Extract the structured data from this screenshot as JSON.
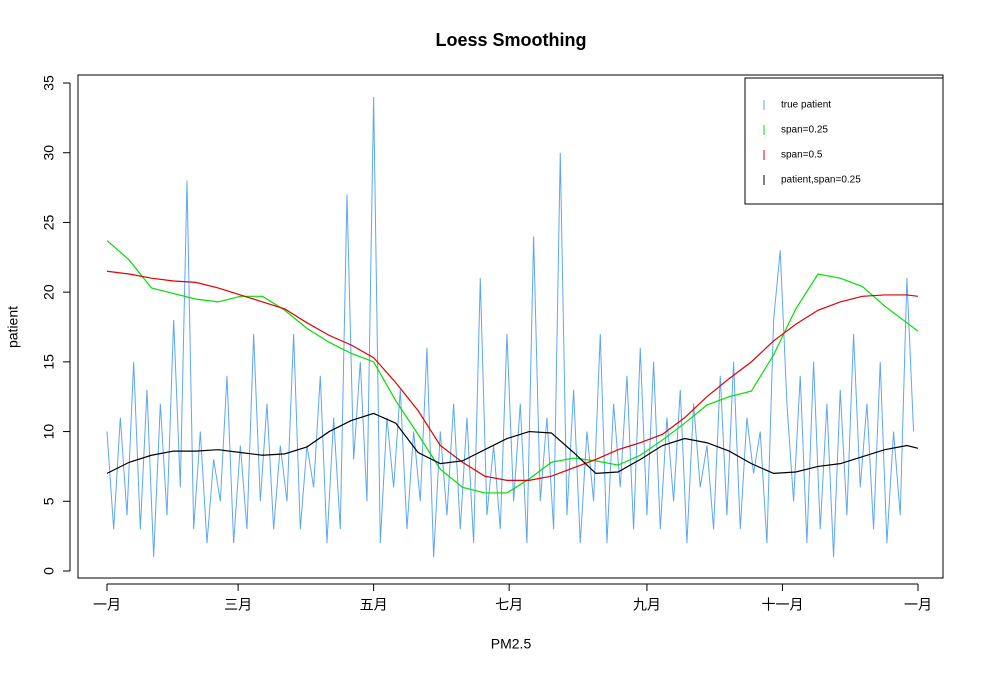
{
  "chart_data": {
    "type": "line",
    "title": "Loess Smoothing",
    "x_label": "PM2.5",
    "y_label": "patient",
    "xlim": [
      0,
      365
    ],
    "ylim": [
      0,
      35
    ],
    "xticks": [
      {
        "value": 0,
        "label": "一月"
      },
      {
        "value": 59,
        "label": "三月"
      },
      {
        "value": 120,
        "label": "五月"
      },
      {
        "value": 181,
        "label": "七月"
      },
      {
        "value": 243,
        "label": "九月"
      },
      {
        "value": 304,
        "label": "十一月"
      },
      {
        "value": 365,
        "label": "一月"
      }
    ],
    "yticks": [
      0,
      5,
      10,
      15,
      20,
      25,
      30,
      35
    ],
    "legend": "topright",
    "series": [
      {
        "name": "true patient",
        "color": "#5ca8f0",
        "x": [
          0,
          3,
          6,
          9,
          12,
          15,
          18,
          21,
          24,
          27,
          30,
          33,
          36,
          39,
          42,
          45,
          48,
          51,
          54,
          57,
          60,
          63,
          66,
          69,
          72,
          75,
          78,
          81,
          84,
          87,
          90,
          93,
          96,
          99,
          102,
          105,
          108,
          111,
          114,
          117,
          120,
          123,
          126,
          129,
          132,
          135,
          138,
          141,
          144,
          147,
          150,
          153,
          156,
          159,
          162,
          165,
          168,
          171,
          174,
          177,
          180,
          183,
          186,
          189,
          192,
          195,
          198,
          201,
          204,
          207,
          210,
          213,
          216,
          219,
          222,
          225,
          228,
          231,
          234,
          237,
          240,
          243,
          246,
          249,
          252,
          255,
          258,
          261,
          264,
          267,
          270,
          273,
          276,
          279,
          282,
          285,
          288,
          291,
          294,
          297,
          300,
          303,
          306,
          309,
          312,
          315,
          318,
          321,
          324,
          327,
          330,
          333,
          336,
          339,
          342,
          345,
          348,
          351,
          354,
          357,
          360,
          363
        ],
        "values": [
          10,
          3,
          11,
          4,
          15,
          3,
          13,
          1,
          12,
          4,
          18,
          6,
          28,
          3,
          10,
          2,
          8,
          5,
          14,
          2,
          9,
          3,
          17,
          5,
          12,
          3,
          9,
          5,
          17,
          3,
          9,
          6,
          14,
          2,
          11,
          3,
          27,
          8,
          15,
          5,
          34,
          2,
          11,
          6,
          13,
          3,
          10,
          5,
          16,
          1,
          10,
          4,
          12,
          3,
          11,
          2,
          21,
          4,
          9,
          3,
          17,
          5,
          12,
          2,
          24,
          5,
          11,
          3,
          30,
          4,
          13,
          2,
          10,
          5,
          17,
          2,
          12,
          6,
          14,
          3,
          16,
          4,
          15,
          3,
          11,
          5,
          13,
          2,
          12,
          6,
          9,
          3,
          14,
          4,
          15,
          3,
          11,
          7,
          10,
          2,
          18,
          23,
          12,
          5,
          14,
          2,
          15,
          3,
          12,
          1,
          13,
          4,
          17,
          6,
          12,
          3,
          15,
          2,
          10,
          4,
          21,
          10
        ]
      },
      {
        "name": "span=0.25",
        "color": "#00e000",
        "x": [
          0,
          10,
          20,
          30,
          40,
          50,
          60,
          70,
          80,
          90,
          100,
          110,
          120,
          130,
          140,
          150,
          160,
          170,
          180,
          190,
          200,
          210,
          220,
          230,
          240,
          250,
          260,
          270,
          280,
          290,
          300,
          310,
          320,
          330,
          340,
          350,
          360,
          365
        ],
        "values": [
          23.7,
          22.3,
          20.3,
          19.9,
          19.5,
          19.3,
          19.7,
          19.7,
          18.7,
          17.4,
          16.4,
          15.6,
          15.0,
          12.2,
          9.8,
          7.3,
          6.0,
          5.6,
          5.6,
          6.6,
          7.8,
          8.1,
          7.9,
          7.6,
          8.3,
          9.4,
          10.6,
          11.9,
          12.5,
          12.9,
          15.5,
          18.8,
          21.3,
          21.0,
          20.4,
          19.0,
          17.8,
          17.2
        ]
      },
      {
        "name": "span=0.5",
        "color": "#e00000",
        "x": [
          0,
          10,
          20,
          30,
          40,
          50,
          60,
          70,
          80,
          90,
          100,
          110,
          120,
          130,
          140,
          150,
          160,
          170,
          180,
          190,
          200,
          210,
          220,
          230,
          240,
          250,
          260,
          270,
          280,
          290,
          300,
          310,
          320,
          330,
          340,
          350,
          360,
          365
        ],
        "values": [
          21.5,
          21.3,
          21.0,
          20.8,
          20.7,
          20.3,
          19.8,
          19.3,
          18.8,
          17.8,
          16.9,
          16.2,
          15.3,
          13.5,
          11.5,
          9.0,
          7.8,
          6.8,
          6.5,
          6.5,
          6.8,
          7.4,
          8.0,
          8.7,
          9.2,
          9.8,
          11.0,
          12.5,
          13.8,
          15.0,
          16.5,
          17.7,
          18.7,
          19.3,
          19.7,
          19.8,
          19.8,
          19.7
        ]
      },
      {
        "name": "patient,span=0.25",
        "color": "#000000",
        "x": [
          0,
          10,
          20,
          30,
          40,
          50,
          60,
          70,
          80,
          90,
          100,
          110,
          120,
          130,
          140,
          150,
          160,
          170,
          180,
          190,
          200,
          210,
          220,
          230,
          240,
          250,
          260,
          270,
          280,
          290,
          300,
          310,
          320,
          330,
          340,
          350,
          360,
          365
        ],
        "values": [
          7.0,
          7.8,
          8.3,
          8.6,
          8.6,
          8.7,
          8.5,
          8.3,
          8.4,
          8.9,
          10.0,
          10.8,
          11.3,
          10.6,
          8.5,
          7.7,
          7.9,
          8.7,
          9.5,
          10.0,
          9.9,
          8.5,
          7.0,
          7.1,
          8.0,
          9.0,
          9.5,
          9.2,
          8.6,
          7.7,
          7.0,
          7.1,
          7.5,
          7.7,
          8.2,
          8.7,
          9.0,
          8.8
        ]
      }
    ]
  }
}
